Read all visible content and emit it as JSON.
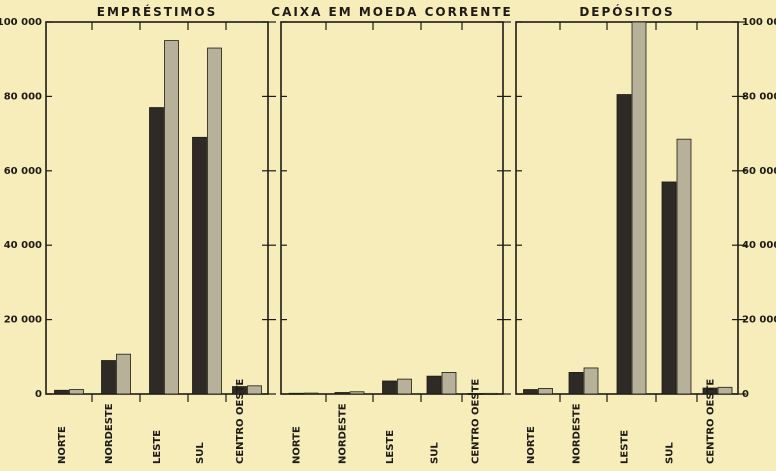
{
  "colors": {
    "background": "#f7edbb",
    "series_dark": "#2e2a26",
    "series_light": "#b8b19a",
    "axis": "#1e1a14"
  },
  "chart_data": [
    {
      "type": "bar",
      "title": "EMPRÉSTIMOS",
      "categories": [
        "NORTE",
        "NORDESTE",
        "LESTE",
        "SUL",
        "CENTRO OESTE"
      ],
      "series": [
        {
          "values": [
            1000,
            9000,
            77000,
            69000,
            2000
          ]
        },
        {
          "values": [
            1200,
            10700,
            95000,
            93000,
            2200
          ]
        }
      ],
      "ylim": [
        0,
        100000
      ],
      "yticks": [
        "0",
        "20 000",
        "40 000",
        "60 000",
        "80 000",
        "100 000"
      ]
    },
    {
      "type": "bar",
      "title": "CAIXA EM MOEDA CORRENTE",
      "categories": [
        "NORTE",
        "NORDESTE",
        "LESTE",
        "SUL",
        "CENTRO OESTE"
      ],
      "series": [
        {
          "values": [
            200,
            400,
            3500,
            4800,
            150
          ]
        },
        {
          "values": [
            250,
            600,
            4000,
            5800,
            180
          ]
        }
      ],
      "ylim": [
        0,
        100000
      ]
    },
    {
      "type": "bar",
      "title": "DEPÓSITOS",
      "categories": [
        "NORTE",
        "NORDESTE",
        "LESTE",
        "SUL",
        "CENTRO OESTE"
      ],
      "series": [
        {
          "values": [
            1200,
            5800,
            80500,
            57000,
            1600
          ]
        },
        {
          "values": [
            1500,
            7000,
            100000,
            68500,
            1800
          ]
        }
      ],
      "ylim": [
        0,
        100000
      ],
      "yticks": [
        "0",
        "20 000",
        "40 000",
        "60 000",
        "80 000",
        "100 000"
      ]
    }
  ]
}
